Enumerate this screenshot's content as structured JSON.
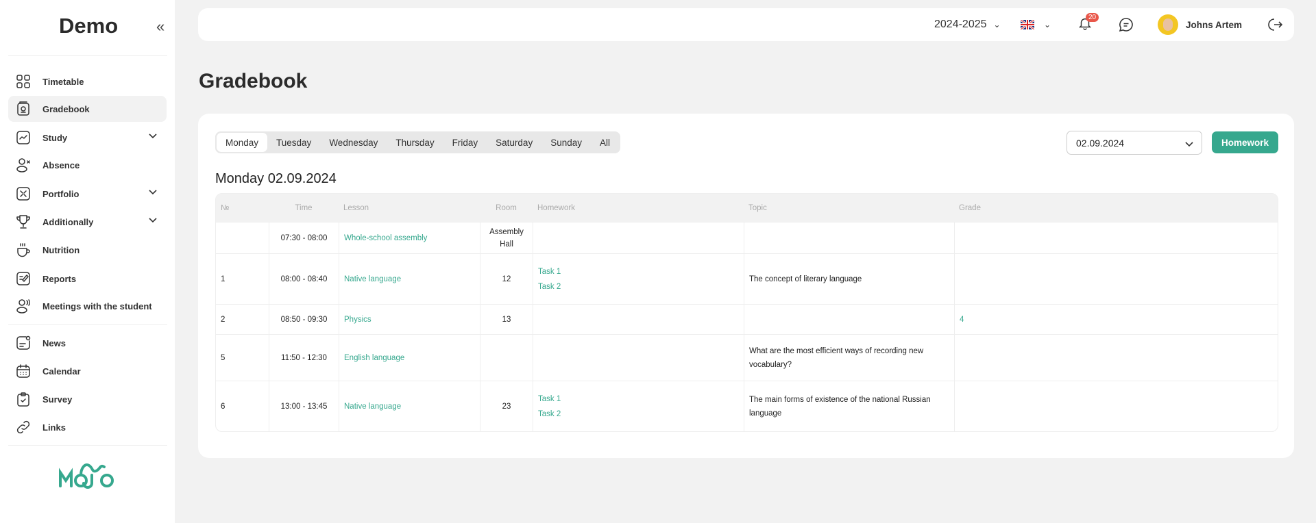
{
  "sidebar": {
    "brand": "Demo",
    "items": [
      {
        "label": "Timetable",
        "icon": "grid-icon"
      },
      {
        "label": "Gradebook",
        "icon": "gradebook-icon",
        "active": true
      },
      {
        "label": "Study",
        "icon": "chart-trend-icon",
        "expandable": true
      },
      {
        "label": "Absence",
        "icon": "user-x-icon"
      },
      {
        "label": "Portfolio",
        "icon": "portfolio-icon",
        "expandable": true
      },
      {
        "label": "Additionally",
        "icon": "trophy-icon",
        "expandable": true
      },
      {
        "label": "Nutrition",
        "icon": "coffee-cup-icon"
      },
      {
        "label": "Reports",
        "icon": "report-edit-icon"
      },
      {
        "label": "Meetings with the student",
        "icon": "user-voice-icon"
      },
      {
        "label": "News",
        "icon": "news-icon"
      },
      {
        "label": "Calendar",
        "icon": "calendar-icon"
      },
      {
        "label": "Survey",
        "icon": "clipboard-check-icon"
      },
      {
        "label": "Links",
        "icon": "link-icon"
      }
    ],
    "logo_text": "MOJO"
  },
  "topbar": {
    "year": "2024-2025",
    "language": "EN",
    "notifications": "20",
    "user_name": "Johns Artem"
  },
  "page": {
    "title": "Gradebook"
  },
  "tabs": [
    "Monday",
    "Tuesday",
    "Wednesday",
    "Thursday",
    "Friday",
    "Saturday",
    "Sunday",
    "All"
  ],
  "active_tab": "Monday",
  "date_select": "02.09.2024",
  "homework_button": "Homework",
  "day_heading": "Monday 02.09.2024",
  "table": {
    "headers": [
      "№",
      "Time",
      "Lesson",
      "Room",
      "Homework",
      "Topic",
      "Grade"
    ],
    "rows": [
      {
        "num": "",
        "time": "07:30 - 08:00",
        "lesson": "Whole-school assembly",
        "room": "Assembly Hall",
        "homework": [],
        "topic": "",
        "grade": ""
      },
      {
        "num": "1",
        "time": "08:00 - 08:40",
        "lesson": "Native language",
        "room": "12",
        "homework": [
          "Task 1",
          "Task 2"
        ],
        "topic": "The concept of literary language",
        "grade": ""
      },
      {
        "num": "2",
        "time": "08:50 - 09:30",
        "lesson": "Physics",
        "room": "13",
        "homework": [],
        "topic": "",
        "grade": "4"
      },
      {
        "num": "5",
        "time": "11:50 - 12:30",
        "lesson": "English language",
        "room": "",
        "homework": [],
        "topic": "What are the most efficient ways of recording new vocabulary?",
        "grade": ""
      },
      {
        "num": "6",
        "time": "13:00 - 13:45",
        "lesson": "Native language",
        "room": "23",
        "homework": [
          "Task 1",
          "Task 2"
        ],
        "topic": "The main forms of existence of the national Russian language",
        "grade": ""
      }
    ]
  },
  "colors": {
    "accent": "#36a88e",
    "badge": "#e9574a",
    "background": "#f2f2f2"
  }
}
